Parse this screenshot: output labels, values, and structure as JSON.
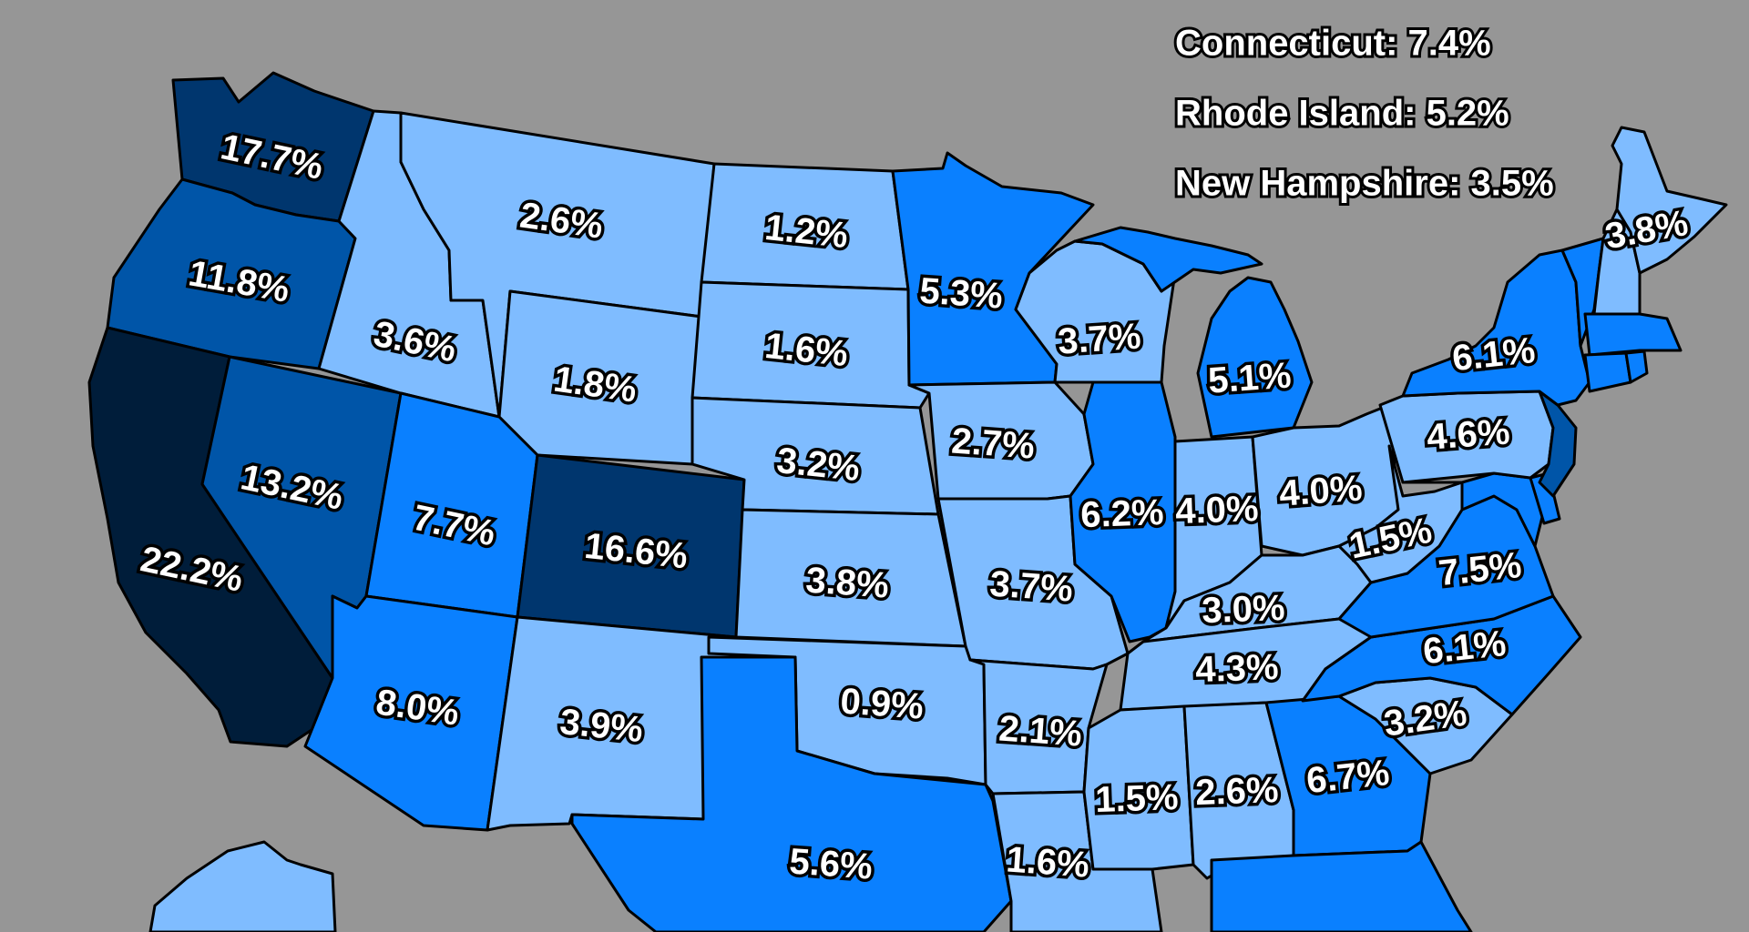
{
  "colors": {
    "background": "#969696",
    "tier1": "#7fbcff",
    "tier2": "#0a80ff",
    "tier3": "#0055a8",
    "tier4": "#00366e",
    "tier5": "#001d3a",
    "outline": "#000000"
  },
  "notes": {
    "connecticut": "Connecticut: 7.4%",
    "rhode_island": "Rhode Island: 5.2%",
    "new_hampshire": "New Hampshire: 3.5%"
  },
  "states": {
    "washington": "17.7%",
    "oregon": "11.8%",
    "california": "22.2%",
    "nevada": "13.2%",
    "idaho": "3.6%",
    "montana": "2.6%",
    "wyoming": "1.8%",
    "utah": "7.7%",
    "colorado": "16.6%",
    "arizona": "8.0%",
    "new_mexico": "3.9%",
    "north_dakota": "1.2%",
    "south_dakota": "1.6%",
    "nebraska": "3.2%",
    "kansas": "3.8%",
    "oklahoma": "0.9%",
    "texas": "5.6%",
    "minnesota": "5.3%",
    "iowa": "2.7%",
    "missouri": "3.7%",
    "arkansas": "2.1%",
    "louisiana": "1.6%",
    "wisconsin": "3.7%",
    "illinois": "6.2%",
    "michigan": "5.1%",
    "indiana": "4.0%",
    "ohio": "4.0%",
    "kentucky": "3.0%",
    "tennessee": "4.3%",
    "mississippi": "1.5%",
    "alabama": "2.6%",
    "georgia": "6.7%",
    "south_carolina": "3.2%",
    "north_carolina": "6.1%",
    "virginia": "7.5%",
    "west_virginia": "1.5%",
    "pennsylvania": "4.6%",
    "new_york": "6.1%",
    "maine": "3.8%"
  }
}
